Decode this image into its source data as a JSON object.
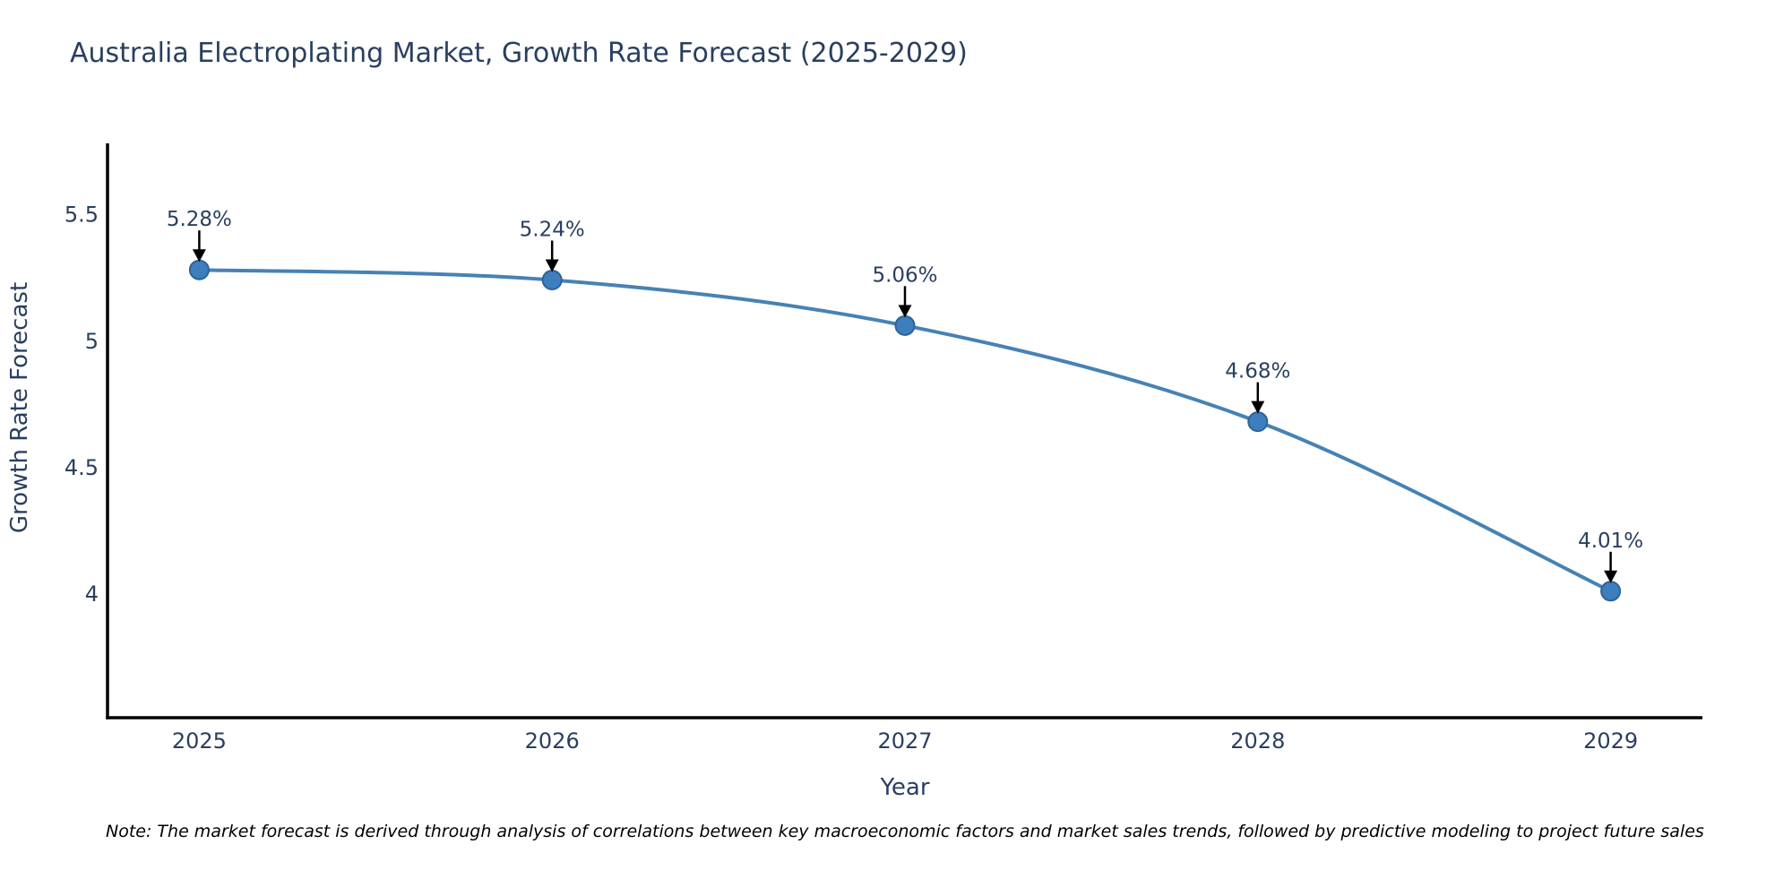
{
  "title": "Australia Electroplating Market, Growth Rate Forecast (2025-2029)",
  "note": "Note: The market forecast is derived through analysis of correlations between key macroeconomic factors and market sales trends, followed by predictive modeling to project future sales",
  "chart_data": {
    "type": "line",
    "title": "Australia Electroplating Market, Growth Rate Forecast (2025-2029)",
    "xlabel": "Year",
    "ylabel": "Growth Rate Forecast",
    "x": [
      2025,
      2026,
      2027,
      2028,
      2029
    ],
    "values": [
      5.28,
      5.24,
      5.06,
      4.68,
      4.01
    ],
    "data_labels": [
      "5.28%",
      "5.24%",
      "5.06%",
      "4.68%",
      "4.01%"
    ],
    "x_tick_labels": [
      "2025",
      "2026",
      "2027",
      "2028",
      "2029"
    ],
    "y_ticks": [
      5.5,
      5.0,
      4.5,
      4.0
    ],
    "y_tick_labels": [
      "5.5",
      "5",
      "4.5",
      "4"
    ],
    "xlim": [
      2024.74,
      2029.26
    ],
    "ylim": [
      3.51,
      5.78
    ],
    "grid": false,
    "legend": "none",
    "line_shape": "spline",
    "colors": {
      "line": "#4682b4",
      "marker_fill": "#3d7ebf",
      "marker_edge": "#2f6397",
      "axis": "#000000",
      "tick_text": "#2a3f5f",
      "annotation_text": "#2a3f5f",
      "annotation_arrow": "#000000",
      "title_text": "#2a3f5f"
    }
  }
}
